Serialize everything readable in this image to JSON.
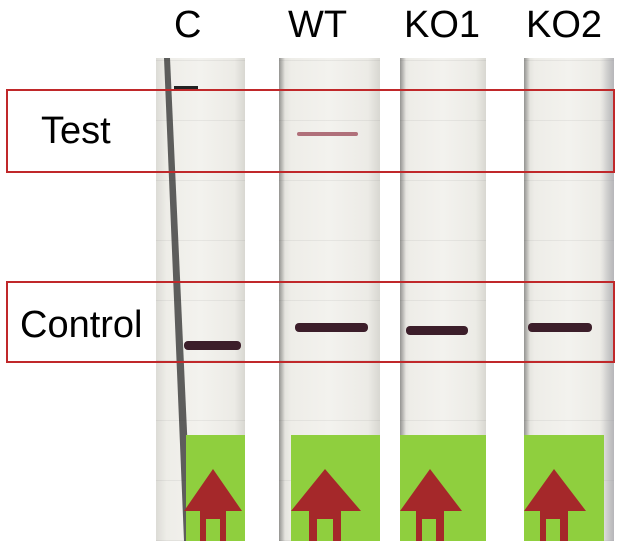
{
  "lanes": [
    {
      "id": "c",
      "label": "C",
      "test_band": false,
      "control_band": true
    },
    {
      "id": "wt",
      "label": "WT",
      "test_band": true,
      "control_band": true
    },
    {
      "id": "ko1",
      "label": "KO1",
      "test_band": false,
      "control_band": true
    },
    {
      "id": "ko2",
      "label": "KO2",
      "test_band": false,
      "control_band": true
    }
  ],
  "regions": {
    "test_label": "Test",
    "control_label": "Control"
  },
  "colors": {
    "region_box": "#c0282a",
    "control_band": "#3c1e2a",
    "test_band": "#b0707a",
    "sample_pad": "#8fcf3e",
    "arrow": "#a5282a"
  }
}
